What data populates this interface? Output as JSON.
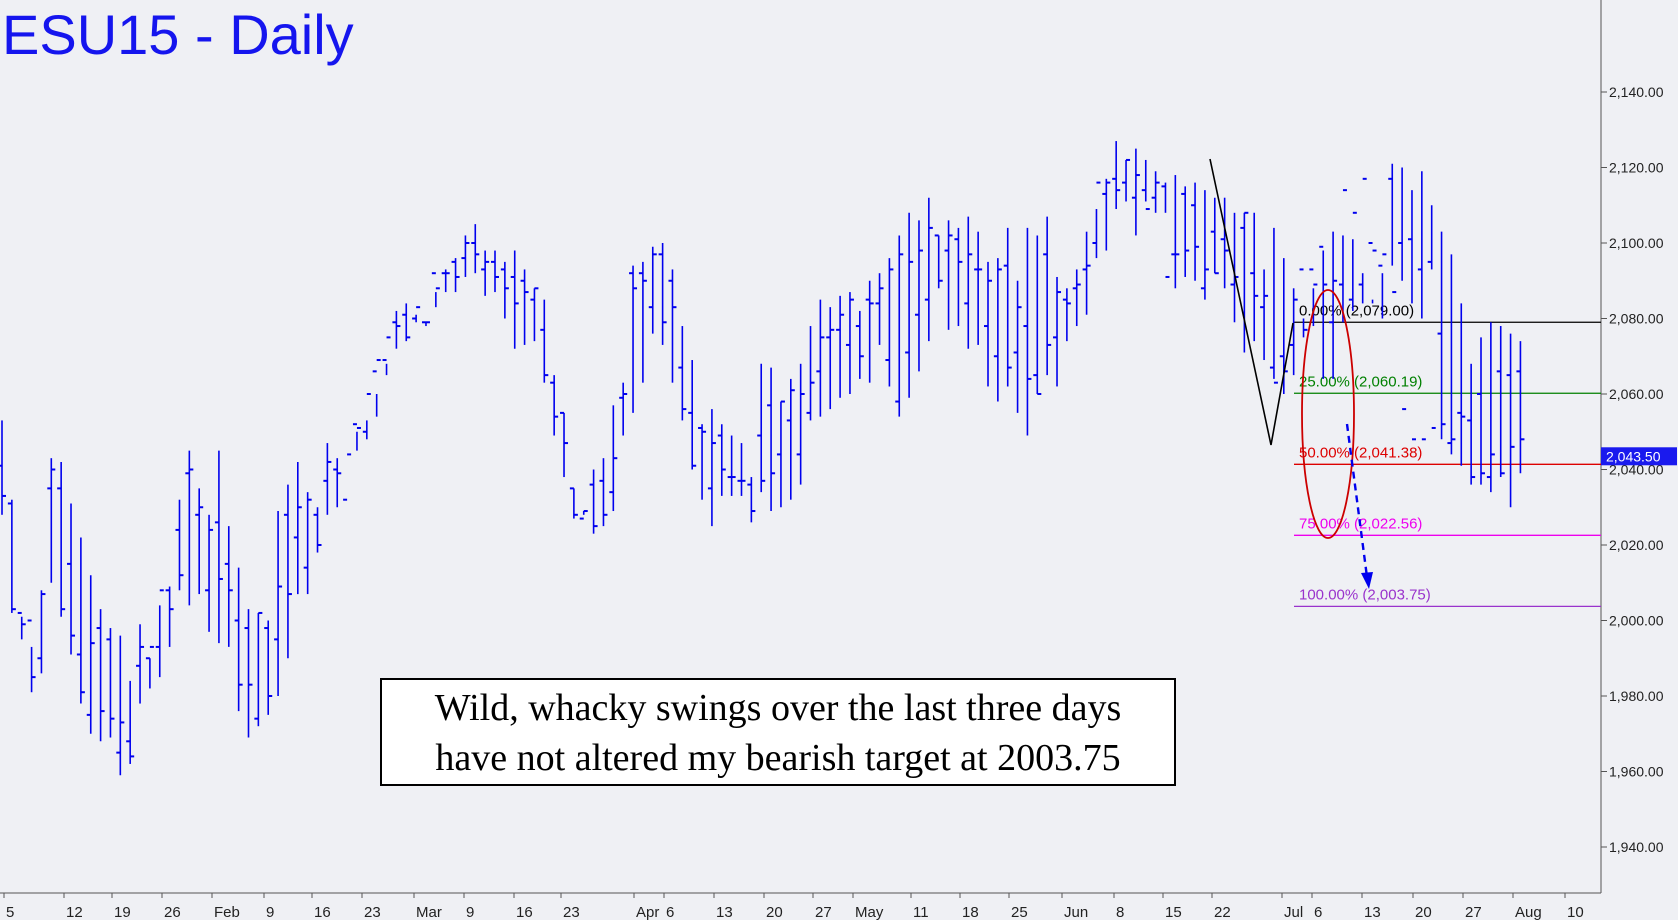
{
  "chart_data": {
    "type": "ohlc",
    "title": "ESU15 - Daily",
    "ylim": [
      1930,
      2162
    ],
    "y_ticks": [
      "1,940.00",
      "1,960.00",
      "1,980.00",
      "2,000.00",
      "2,020.00",
      "2,040.00",
      "2,060.00",
      "2,080.00",
      "2,100.00",
      "2,120.00",
      "2,140.00"
    ],
    "x_ticks": [
      "5",
      "12",
      "19",
      "26",
      "Feb",
      "9",
      "16",
      "23",
      "Mar",
      "9",
      "16",
      "23",
      "Apr",
      "6",
      "13",
      "20",
      "27",
      "May",
      "11",
      "18",
      "25",
      "Jun",
      "8",
      "15",
      "22",
      "Jul",
      "6",
      "13",
      "20",
      "27",
      "Aug",
      "10"
    ],
    "last_price_label": "2,043.50",
    "series": [
      {
        "highs": [
          2053,
          2032,
          2001,
          1993,
          2008,
          2043,
          2042,
          2031,
          2022,
          2012,
          2003,
          1998,
          1996,
          1984,
          1999,
          1990,
          2004,
          2009,
          2032,
          2045,
          2035,
          2028,
          2045,
          2025,
          2014,
          2003,
          2002,
          2000,
          2029,
          2036,
          2042,
          2034,
          2030,
          2047,
          2043,
          2033,
          2050,
          2053,
          2060,
          2068,
          2082,
          2084,
          2081,
          2078,
          2083,
          2093,
          2096,
          2102,
          2105,
          2098,
          2098,
          2095,
          2098,
          2093,
          2088,
          2085,
          2065,
          2055,
          2035,
          2028,
          2040,
          2043,
          2057,
          2063,
          2094,
          2095,
          2099,
          2100,
          2093,
          2078,
          2069,
          2052,
          2056,
          2052,
          2049,
          2047,
          2038,
          2068,
          2067,
          2058,
          2064,
          2068,
          2078,
          2085,
          2083,
          2086,
          2087,
          2082,
          2090,
          2092,
          2096,
          2102,
          2108,
          2106,
          2112,
          2102,
          2106,
          2104,
          2107,
          2103,
          2095,
          2096,
          2104,
          2090,
          2104,
          2102,
          2107,
          2091,
          2088,
          2093,
          2103,
          2109,
          2117,
          2127,
          2122,
          2125,
          2122,
          2119,
          2116,
          2118,
          2115,
          2116,
          2114,
          2112,
          2112,
          2108,
          2108,
          2108,
          2093,
          2104,
          2096,
          2088,
          2080,
          2088,
          2098,
          2103,
          2102,
          2101,
          2092,
          2085,
          2080,
          2121,
          2120,
          2114,
          2119,
          2110,
          2103,
          2097,
          2084,
          2068,
          2075,
          2079,
          2078,
          2076,
          2074
        ],
        "lows": [
          2028,
          2002,
          1995,
          1981,
          1986,
          2010,
          2001,
          1991,
          1978,
          1970,
          1968,
          1969,
          1959,
          1962,
          1978,
          1982,
          1985,
          1993,
          2008,
          2004,
          2007,
          1997,
          1994,
          1993,
          1976,
          1969,
          1972,
          1975,
          1980,
          1990,
          2007,
          2007,
          2018,
          2028,
          2030,
          2033,
          2045,
          2048,
          2054,
          2065,
          2072,
          2074,
          2079,
          2079,
          2087,
          2087,
          2087,
          2091,
          2092,
          2086,
          2087,
          2080,
          2072,
          2073,
          2074,
          2063,
          2049,
          2038,
          2027,
          2029,
          2023,
          2025,
          2029,
          2049,
          2055,
          2063,
          2076,
          2073,
          2063,
          2053,
          2040,
          2032,
          2025,
          2033,
          2033,
          2033,
          2026,
          2034,
          2029,
          2030,
          2032,
          2036,
          2053,
          2054,
          2056,
          2059,
          2060,
          2064,
          2063,
          2073,
          2062,
          2054,
          2059,
          2066,
          2074,
          2088,
          2077,
          2078,
          2072,
          2073,
          2062,
          2058,
          2062,
          2055,
          2049,
          2060,
          2065,
          2062,
          2074,
          2078,
          2081,
          2096,
          2098,
          2109,
          2111,
          2102,
          2111,
          2108,
          2108,
          2088,
          2091,
          2090,
          2085,
          2092,
          2088,
          2079,
          2071,
          2074,
          2069,
          2064,
          2060,
          2065,
          2075,
          2078,
          2064,
          2064,
          2079,
          2082,
          2084,
          2084,
          2092,
          2094,
          2090,
          2084,
          2080,
          2093,
          2048,
          2044,
          2041,
          2036,
          2036,
          2034,
          2038,
          2030,
          2039
        ],
        "opens": [
          2041,
          2031,
          2002,
          2000,
          1990,
          2035,
          2035,
          2015,
          1991,
          1975,
          1998,
          1995,
          1965,
          1968,
          1988,
          1990,
          1993,
          2008,
          2024,
          2039,
          2028,
          2008,
          2026,
          2015,
          2000,
          1998,
          1974,
          1998,
          1995,
          2028,
          2022,
          2014,
          2028,
          2037,
          2040,
          2032,
          2052,
          2050,
          2066,
          2069,
          2079,
          2081,
          2080,
          2079,
          2092,
          2092,
          2095,
          2096,
          2100,
          2093,
          2095,
          2093,
          2091,
          2090,
          2085,
          2077,
          2063,
          2055,
          2035,
          2027,
          2036,
          2037,
          2034,
          2059,
          2092,
          2092,
          2083,
          2097,
          2090,
          2067,
          2055,
          2051,
          2035,
          2049,
          2038,
          2037,
          2036,
          2049,
          2057,
          2044,
          2053,
          2044,
          2055,
          2066,
          2075,
          2077,
          2073,
          2078,
          2085,
          2084,
          2069,
          2058,
          2071,
          2081,
          2085,
          2102,
          2098,
          2101,
          2084,
          2093,
          2078,
          2070,
          2094,
          2071,
          2078,
          2065,
          2097,
          2075,
          2085,
          2088,
          2093,
          2100,
          2113,
          2117,
          2116,
          2112,
          2114,
          2112,
          2115,
          2097,
          2113,
          2110,
          2088,
          2103,
          2101,
          2089,
          2104,
          2092,
          2083,
          2067,
          2070,
          2073,
          2093,
          2093,
          2099,
          2079,
          2089,
          2085,
          2089,
          2100,
          2094,
          2117,
          2100,
          2101,
          2093,
          2095,
          2076,
          2047,
          2055,
          2053,
          2060,
          2038,
          2066,
          2065,
          2066
        ],
        "closes": [
          2033,
          2003,
          1999,
          1985,
          2007,
          2040,
          2003,
          1996,
          1981,
          1994,
          1976,
          1974,
          1973,
          1964,
          1993,
          1993,
          2008,
          2003,
          2012,
          2040,
          2030,
          2024,
          2011,
          2008,
          1983,
          1983,
          2002,
          1980,
          2009,
          2007,
          2030,
          2032,
          2020,
          2042,
          2039,
          2044,
          2051,
          2060,
          2069,
          2075,
          2078,
          2075,
          2083,
          2079,
          2088,
          2092,
          2091,
          2100,
          2097,
          2095,
          2091,
          2088,
          2084,
          2087,
          2088,
          2065,
          2054,
          2047,
          2028,
          2029,
          2025,
          2028,
          2043,
          2060,
          2088,
          2090,
          2097,
          2079,
          2083,
          2056,
          2041,
          2050,
          2047,
          2040,
          2038,
          2037,
          2029,
          2037,
          2039,
          2058,
          2061,
          2060,
          2063,
          2075,
          2077,
          2081,
          2085,
          2070,
          2084,
          2088,
          2093,
          2097,
          2095,
          2098,
          2104,
          2090,
          2102,
          2095,
          2097,
          2093,
          2090,
          2093,
          2067,
          2083,
          2064,
          2060,
          2073,
          2087,
          2084,
          2089,
          2094,
          2116,
          2116,
          2114,
          2122,
          2118,
          2109,
          2116,
          2091,
          2097,
          2098,
          2099,
          2093,
          2092,
          2098,
          2091,
          2108,
          2086,
          2086,
          2063,
          2066,
          2085,
          2077,
          2089,
          2089,
          2090,
          2114,
          2108,
          2117,
          2098,
          2097,
          2087,
          2056,
          2048,
          2048,
          2051,
          2052,
          2048,
          2054,
          2038,
          2039,
          2044,
          2039,
          2046,
          2048
        ]
      }
    ],
    "fib_high": 2079,
    "fib_low": 2003.75,
    "fib_levels": [
      {
        "label": "0.00% (2,079.00)",
        "value": 2079.0,
        "color": "#000000"
      },
      {
        "label": "25.00% (2,060.19)",
        "value": 2060.19,
        "color": "#008000"
      },
      {
        "label": "50.00% (2,041.38)",
        "value": 2041.38,
        "color": "#dd0000"
      },
      {
        "label": "75.00% (2,022.56)",
        "value": 2022.56,
        "color": "#ee00ee"
      },
      {
        "label": "100.00% (2,003.75)",
        "value": 2003.75,
        "color": "#9933cc"
      }
    ],
    "colors": {
      "bars": "#0000ee",
      "background": "#eff0f4",
      "projection": "#0000ee"
    }
  },
  "annotation": {
    "line1": "Wild, whacky swings over the last three days",
    "line2": "have not altered my bearish target at 2003.75"
  }
}
